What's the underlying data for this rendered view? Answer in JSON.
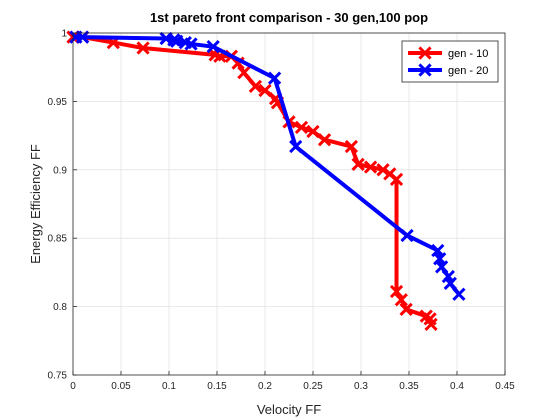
{
  "chart_data": {
    "type": "line",
    "title": "1st pareto front comparison - 30 gen,100 pop",
    "xlabel": "Velocity FF",
    "ylabel": "Energy Efficiency FF",
    "xlim": [
      0,
      0.45
    ],
    "ylim": [
      0.75,
      1.0
    ],
    "xticks": [
      "0",
      "0.05",
      "0.1",
      "0.15",
      "0.2",
      "0.25",
      "0.3",
      "0.35",
      "0.4",
      "0.45"
    ],
    "yticks": [
      "0.75",
      "0.8",
      "0.85",
      "0.9",
      "0.95",
      "1"
    ],
    "grid": true,
    "legend_position": "top-right",
    "series": [
      {
        "name": "gen - 10",
        "color": "#ff0000",
        "marker": "x",
        "x": [
          0.0,
          0.01,
          0.042,
          0.073,
          0.148,
          0.153,
          0.165,
          0.172,
          0.178,
          0.19,
          0.2,
          0.211,
          0.213,
          0.225,
          0.238,
          0.25,
          0.262,
          0.29,
          0.297,
          0.31,
          0.323,
          0.33,
          0.337,
          0.337,
          0.342,
          0.347,
          0.368,
          0.372,
          0.373
        ],
        "y": [
          0.997,
          0.997,
          0.993,
          0.989,
          0.984,
          0.983,
          0.983,
          0.978,
          0.971,
          0.961,
          0.958,
          0.952,
          0.949,
          0.935,
          0.931,
          0.928,
          0.922,
          0.917,
          0.904,
          0.902,
          0.9,
          0.897,
          0.893,
          0.811,
          0.805,
          0.798,
          0.793,
          0.791,
          0.787
        ]
      },
      {
        "name": "gen - 20",
        "color": "#0000ff",
        "marker": "x",
        "x": [
          0.003,
          0.01,
          0.097,
          0.105,
          0.108,
          0.117,
          0.123,
          0.146,
          0.21,
          0.232,
          0.348,
          0.38,
          0.382,
          0.384,
          0.391,
          0.393,
          0.402
        ],
        "y": [
          0.997,
          0.997,
          0.996,
          0.995,
          0.994,
          0.993,
          0.992,
          0.99,
          0.967,
          0.917,
          0.852,
          0.841,
          0.835,
          0.829,
          0.822,
          0.817,
          0.809
        ]
      }
    ]
  }
}
